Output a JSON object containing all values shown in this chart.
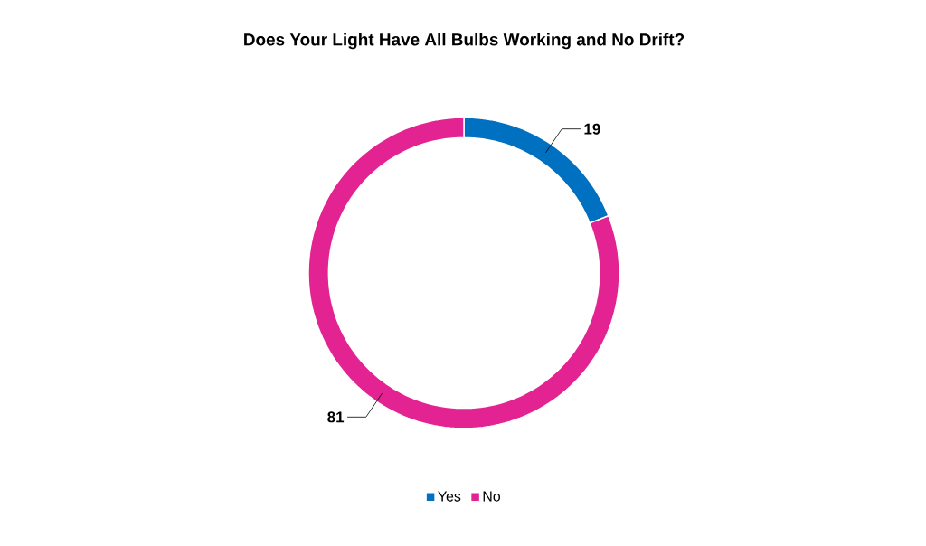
{
  "chart_data": {
    "type": "donut",
    "title": "Does Your Light Have All Bulbs Working and No Drift?",
    "categories": [
      "Yes",
      "No"
    ],
    "values": [
      19,
      81
    ],
    "colors": [
      "#0070c0",
      "#e32391"
    ],
    "data_labels": true,
    "legend": "bottom"
  }
}
